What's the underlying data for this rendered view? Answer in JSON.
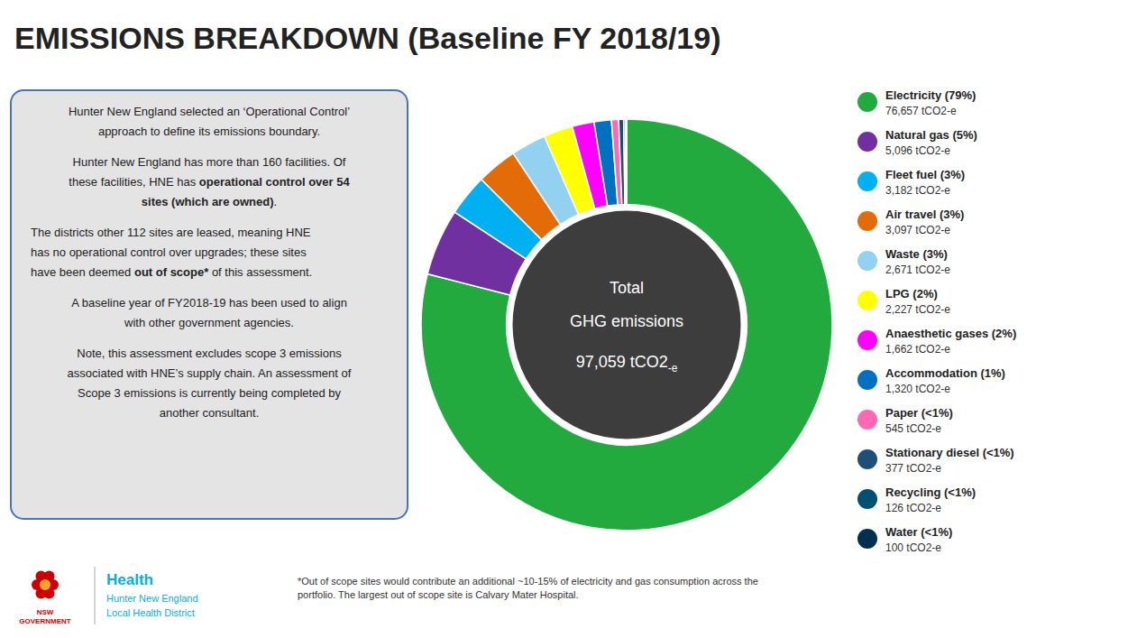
{
  "chart_data": {
    "type": "donut",
    "title": "EMISSIONS BREAKDOWN (Baseline FY 2018/19)",
    "categories": [
      "Electricity (79%)",
      "Natural gas (5%)",
      "Fleet fuel (3%)",
      "Air travel (3%)",
      "Waste (3%)",
      "LPG (2%)",
      "Anaesthetic gases (2%)",
      "Accommodation (1%)",
      "Paper (<1%)",
      "Stationary diesel (<1%)",
      "Recycling (<1%)",
      "Water (<1%)"
    ],
    "values": [
      76657,
      5096,
      3182,
      3097,
      2671,
      2227,
      1662,
      1320,
      545,
      377,
      126,
      100
    ],
    "value_labels": [
      "76,657 tCO2-e",
      "5,096 tCO2-e",
      "3,182 tCO2-e",
      "3,097 tCO2-e",
      "2,671 tCO2-e",
      "2,227 tCO2-e",
      "1,662 tCO2-e",
      "1,320 tCO2-e",
      "545 tCO2-e",
      "377 tCO2-e",
      "126 tCO2-e",
      "100 tCO2-e"
    ],
    "colors": [
      "#22aa3e",
      "#7030a0",
      "#00b0f0",
      "#e36c09",
      "#92d2f0",
      "#ffff00",
      "#ff00ff",
      "#0070c0",
      "#ff69b4",
      "#1f4e79",
      "#005073",
      "#003050"
    ],
    "legend": "right",
    "annotations": [
      "Hunter New England selected an ‘Operational Control’",
      "approach to define its emissions boundary.",
      "Hunter New England has more than 160 facilities. Of",
      "these facilities, HNE has ",
      "operational control over 54",
      "sites (which are owned)",
      ".",
      "The districts other 112 sites are leased, meaning HNE",
      "has no operational control over upgrades; these sites",
      "have been deemed ",
      "out of scope*",
      " of this assessment.",
      "A baseline year of FY2018-19 has been used to align",
      "with other government agencies.",
      "Note, this assessment excludes scope 3 emissions",
      "associated with HNE’s supply chain. An assessment of",
      "Scope 3 emissions is currently being completed by",
      "another consultant.",
      "Total",
      "GHG emissions",
      "97,059 tCO2",
      "-e",
      "*Out of scope sites would contribute an additional ~10-15% of electricity and gas consumption across the",
      "portfolio. The largest out of scope site is Calvary Mater Hospital.",
      "NSW",
      "GOVERNMENT",
      "Health",
      "Hunter New England",
      "Local Health District"
    ]
  }
}
